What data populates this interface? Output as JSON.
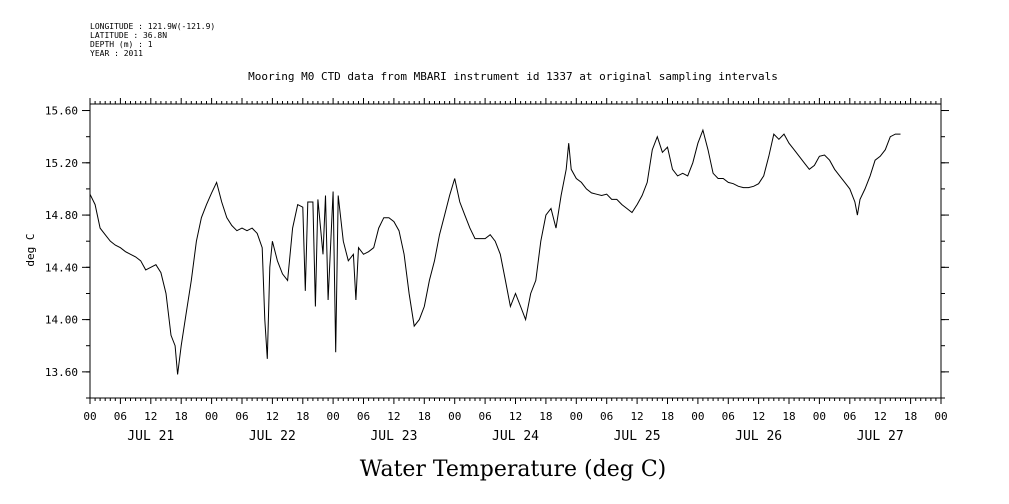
{
  "meta": {
    "longitude": "LONGITUDE : 121.9W(-121.9)",
    "latitude": "LATITUDE : 36.8N",
    "depth": "DEPTH (m) : 1",
    "year": "YEAR : 2011"
  },
  "chart_data": {
    "type": "line",
    "title": "Mooring M0 CTD data from MBARI instrument id 1337 at original sampling intervals",
    "xlabel": "Water Temperature (deg C)",
    "ylabel": "deg C",
    "ylim": [
      13.4,
      15.65
    ],
    "yticks": [
      13.6,
      14.0,
      14.4,
      14.8,
      15.2,
      15.6
    ],
    "ytick_labels": [
      "13.60",
      "14.00",
      "14.40",
      "14.80",
      "15.20",
      "15.60"
    ],
    "xlim_hours": [
      0,
      168
    ],
    "hour_ticks": [
      "00",
      "06",
      "12",
      "18",
      "00",
      "06",
      "12",
      "18",
      "00",
      "06",
      "12",
      "18",
      "00",
      "06",
      "12",
      "18",
      "00",
      "06",
      "12",
      "18",
      "00",
      "06",
      "12",
      "18",
      "00",
      "06",
      "12",
      "18",
      "00"
    ],
    "day_labels": [
      "JUL 21",
      "JUL 22",
      "JUL 23",
      "JUL 24",
      "JUL 25",
      "JUL 26",
      "JUL 27"
    ],
    "grid": false,
    "series": [
      {
        "values": [
          [
            0,
            14.96
          ],
          [
            1,
            14.88
          ],
          [
            2,
            14.7
          ],
          [
            3,
            14.65
          ],
          [
            4,
            14.6
          ],
          [
            5,
            14.57
          ],
          [
            6,
            14.55
          ],
          [
            7,
            14.52
          ],
          [
            8,
            14.5
          ],
          [
            9,
            14.48
          ],
          [
            10,
            14.45
          ],
          [
            11,
            14.38
          ],
          [
            12,
            14.4
          ],
          [
            13,
            14.42
          ],
          [
            14,
            14.36
          ],
          [
            15,
            14.2
          ],
          [
            16,
            13.88
          ],
          [
            16.8,
            13.8
          ],
          [
            17.3,
            13.58
          ],
          [
            18,
            13.8
          ],
          [
            19,
            14.05
          ],
          [
            20,
            14.3
          ],
          [
            21,
            14.6
          ],
          [
            22,
            14.78
          ],
          [
            23,
            14.88
          ],
          [
            24,
            14.97
          ],
          [
            25,
            15.05
          ],
          [
            26,
            14.9
          ],
          [
            27,
            14.78
          ],
          [
            28,
            14.72
          ],
          [
            29,
            14.68
          ],
          [
            30,
            14.7
          ],
          [
            31,
            14.68
          ],
          [
            32,
            14.7
          ],
          [
            33,
            14.66
          ],
          [
            34,
            14.55
          ],
          [
            34.5,
            14.0
          ],
          [
            35,
            13.7
          ],
          [
            35.5,
            14.4
          ],
          [
            36,
            14.6
          ],
          [
            37,
            14.45
          ],
          [
            38,
            14.35
          ],
          [
            39,
            14.3
          ],
          [
            40,
            14.7
          ],
          [
            41,
            14.88
          ],
          [
            42,
            14.86
          ],
          [
            42.5,
            14.22
          ],
          [
            43,
            14.9
          ],
          [
            44,
            14.9
          ],
          [
            44.5,
            14.1
          ],
          [
            45,
            14.92
          ],
          [
            46,
            14.5
          ],
          [
            46.5,
            14.95
          ],
          [
            47,
            14.15
          ],
          [
            48,
            14.98
          ],
          [
            48.5,
            13.75
          ],
          [
            49,
            14.95
          ],
          [
            50,
            14.6
          ],
          [
            51,
            14.45
          ],
          [
            52,
            14.5
          ],
          [
            52.5,
            14.15
          ],
          [
            53,
            14.55
          ],
          [
            54,
            14.5
          ],
          [
            55,
            14.52
          ],
          [
            56,
            14.55
          ],
          [
            57,
            14.7
          ],
          [
            58,
            14.78
          ],
          [
            59,
            14.78
          ],
          [
            60,
            14.75
          ],
          [
            61,
            14.68
          ],
          [
            62,
            14.5
          ],
          [
            63,
            14.2
          ],
          [
            64,
            13.95
          ],
          [
            65,
            14.0
          ],
          [
            66,
            14.1
          ],
          [
            67,
            14.3
          ],
          [
            68,
            14.45
          ],
          [
            69,
            14.65
          ],
          [
            70,
            14.8
          ],
          [
            71,
            14.95
          ],
          [
            72,
            15.08
          ],
          [
            73,
            14.9
          ],
          [
            74,
            14.8
          ],
          [
            75,
            14.7
          ],
          [
            76,
            14.62
          ],
          [
            77,
            14.62
          ],
          [
            78,
            14.62
          ],
          [
            79,
            14.65
          ],
          [
            80,
            14.6
          ],
          [
            81,
            14.5
          ],
          [
            82,
            14.3
          ],
          [
            83,
            14.1
          ],
          [
            84,
            14.2
          ],
          [
            85,
            14.1
          ],
          [
            86,
            14.0
          ],
          [
            87,
            14.2
          ],
          [
            88,
            14.3
          ],
          [
            89,
            14.6
          ],
          [
            90,
            14.8
          ],
          [
            91,
            14.85
          ],
          [
            92,
            14.7
          ],
          [
            93,
            14.95
          ],
          [
            94,
            15.15
          ],
          [
            94.5,
            15.35
          ],
          [
            95,
            15.15
          ],
          [
            96,
            15.08
          ],
          [
            97,
            15.05
          ],
          [
            98,
            15.0
          ],
          [
            99,
            14.97
          ],
          [
            100,
            14.96
          ],
          [
            101,
            14.95
          ],
          [
            102,
            14.96
          ],
          [
            103,
            14.92
          ],
          [
            104,
            14.92
          ],
          [
            105,
            14.88
          ],
          [
            106,
            14.85
          ],
          [
            107,
            14.82
          ],
          [
            108,
            14.88
          ],
          [
            109,
            14.95
          ],
          [
            110,
            15.05
          ],
          [
            111,
            15.3
          ],
          [
            112,
            15.4
          ],
          [
            113,
            15.28
          ],
          [
            114,
            15.32
          ],
          [
            115,
            15.15
          ],
          [
            116,
            15.1
          ],
          [
            117,
            15.12
          ],
          [
            118,
            15.1
          ],
          [
            119,
            15.2
          ],
          [
            120,
            15.35
          ],
          [
            121,
            15.45
          ],
          [
            122,
            15.3
          ],
          [
            123,
            15.12
          ],
          [
            124,
            15.08
          ],
          [
            125,
            15.08
          ],
          [
            126,
            15.05
          ],
          [
            127,
            15.04
          ],
          [
            128,
            15.02
          ],
          [
            129,
            15.01
          ],
          [
            130,
            15.01
          ],
          [
            131,
            15.02
          ],
          [
            132,
            15.04
          ],
          [
            133,
            15.1
          ],
          [
            134,
            15.25
          ],
          [
            135,
            15.42
          ],
          [
            136,
            15.38
          ],
          [
            137,
            15.42
          ],
          [
            138,
            15.35
          ],
          [
            139,
            15.3
          ],
          [
            140,
            15.25
          ],
          [
            141,
            15.2
          ],
          [
            142,
            15.15
          ],
          [
            143,
            15.18
          ],
          [
            144,
            15.25
          ],
          [
            145,
            15.26
          ],
          [
            146,
            15.22
          ],
          [
            147,
            15.15
          ],
          [
            148,
            15.1
          ],
          [
            149,
            15.05
          ],
          [
            150,
            15.0
          ],
          [
            151,
            14.9
          ],
          [
            151.5,
            14.8
          ],
          [
            152,
            14.92
          ],
          [
            153,
            15.0
          ],
          [
            154,
            15.1
          ],
          [
            155,
            15.22
          ],
          [
            156,
            15.25
          ],
          [
            157,
            15.3
          ],
          [
            158,
            15.4
          ],
          [
            159,
            15.42
          ],
          [
            160,
            15.42
          ]
        ]
      }
    ]
  }
}
